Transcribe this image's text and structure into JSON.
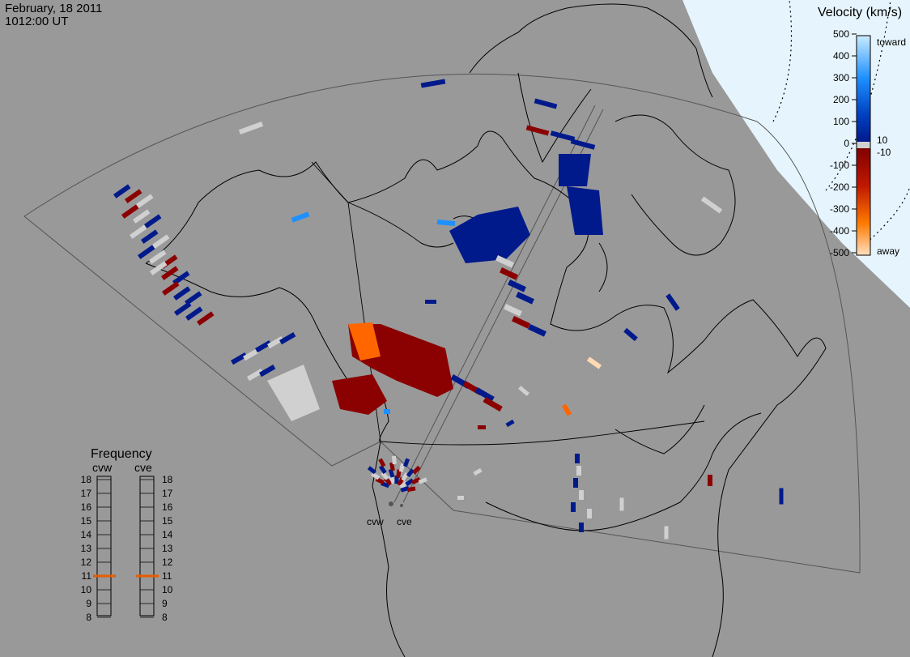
{
  "header": {
    "date": "February, 18 2011",
    "time": "1012:00 UT"
  },
  "colors": {
    "background": "#999999",
    "daylight": "#e6f5fd",
    "coast": "#000000",
    "fov": "#555555",
    "toward_light": "#b3e0ff",
    "toward_mid": "#1e90ff",
    "toward_dark": "#001a8c",
    "away_dark": "#8b0000",
    "away_mid": "#ff6600",
    "away_light": "#ffd9b3",
    "low": "#d0d0d0",
    "freq_marker": "#e65c00"
  },
  "velocity_scale": {
    "title": "Velocity (km/s)",
    "ticks": [
      "500",
      "400",
      "300",
      "200",
      "100",
      "0",
      "-100",
      "-200",
      "-300",
      "-400",
      "-500"
    ],
    "low_labels": [
      "10",
      "-10"
    ],
    "toward_label": "toward",
    "away_label": "away"
  },
  "frequency_panel": {
    "title": "Frequency",
    "radars": [
      "cvw",
      "cve"
    ],
    "ticks": [
      "18",
      "17",
      "16",
      "15",
      "14",
      "13",
      "12",
      "11",
      "10",
      "9",
      "8"
    ],
    "values": {
      "cvw": 11,
      "cve": 11
    }
  },
  "radar_sites": [
    {
      "id": "cvw",
      "label": "cvw"
    },
    {
      "id": "cve",
      "label": "cve"
    }
  ]
}
